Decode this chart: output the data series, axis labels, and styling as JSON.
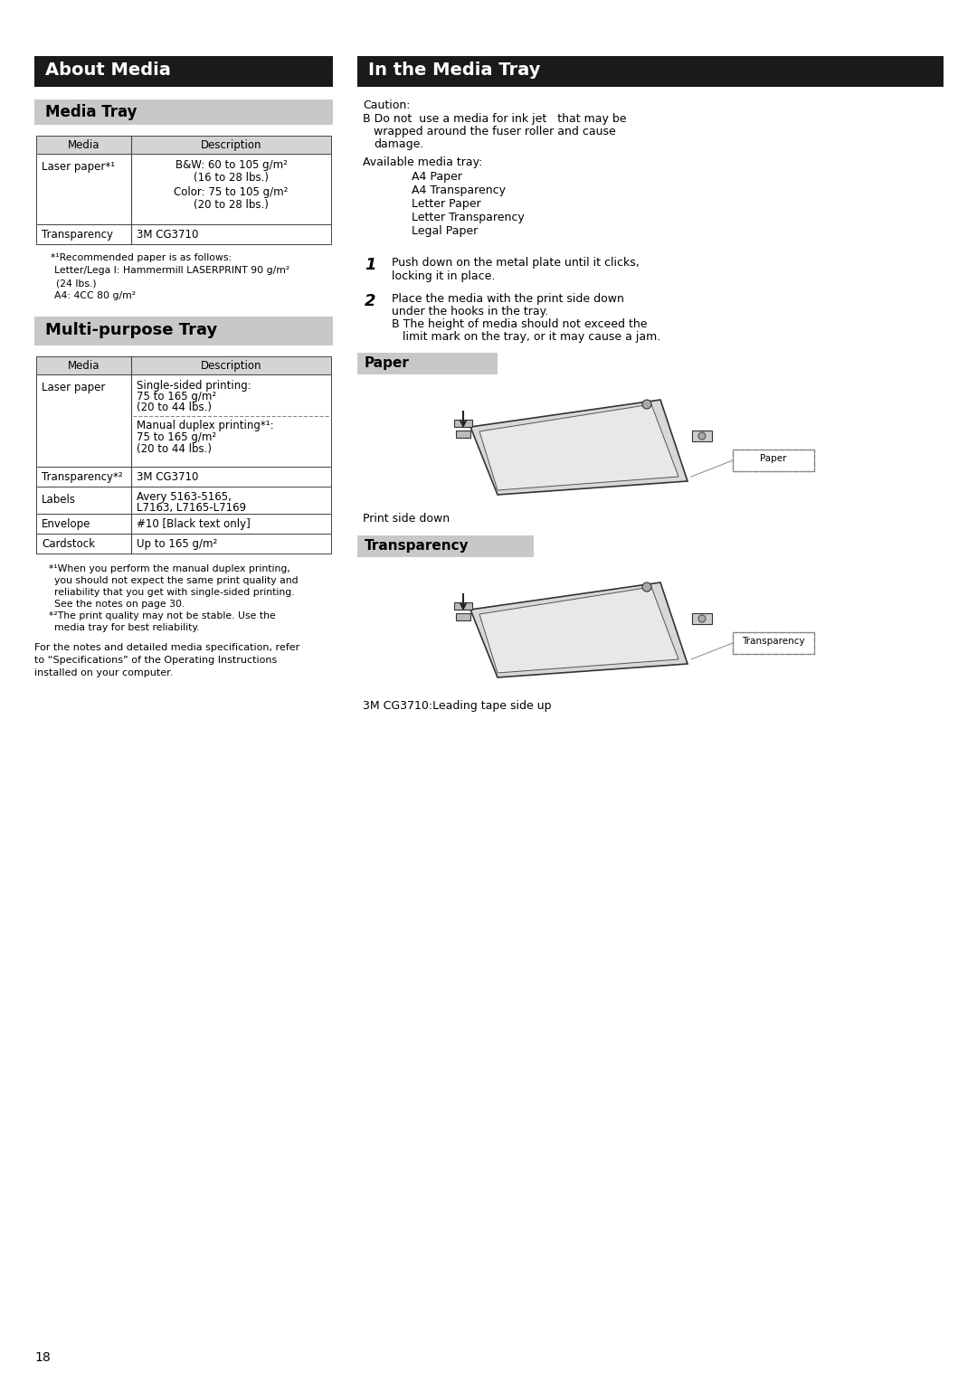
{
  "bg_color": "#ffffff",
  "page_number": "18",
  "header_bg": "#1a1a1a",
  "subheader_bg": "#c8c8c8",
  "header_text_color": "#ffffff",
  "subheader_text_color": "#000000",
  "table_header_bg": "#d4d4d4",
  "table_border_color": "#444444",
  "about_media_header": "About Media",
  "media_tray_subheader": "Media Tray",
  "in_media_tray_header": "In the Media Tray",
  "multi_purpose_subheader": "Multi-purpose Tray",
  "paper_subheader": "Paper",
  "transparency_subheader": "Transparency",
  "paper_caption": "Print side down",
  "transparency_caption": "3M CG3710:Leading tape side up",
  "right_available_list": [
    "A4 Paper",
    "A4 Transparency",
    "Letter Paper",
    "Letter Transparency",
    "Legal Paper"
  ]
}
